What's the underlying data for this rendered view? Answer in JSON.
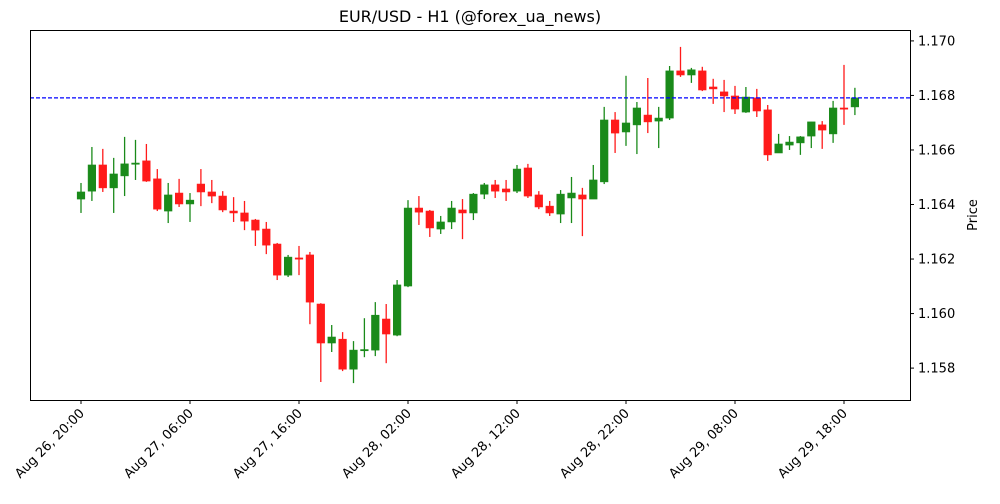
{
  "chart_data": {
    "type": "candlestick",
    "title": "EUR/USD - H1 (@forex_ua_news)",
    "xlabel": "",
    "ylabel": "Price",
    "ylim": [
      1.15683,
      1.1704
    ],
    "y_ticks": [
      1.158,
      1.16,
      1.162,
      1.164,
      1.166,
      1.168,
      1.17
    ],
    "y_tick_labels": [
      "1.158",
      "1.160",
      "1.162",
      "1.164",
      "1.166",
      "1.168",
      "1.170"
    ],
    "x_ticks": [
      {
        "index": 0,
        "label": "Aug 26, 20:00"
      },
      {
        "index": 10,
        "label": "Aug 27, 06:00"
      },
      {
        "index": 20,
        "label": "Aug 27, 16:00"
      },
      {
        "index": 30,
        "label": "Aug 28, 02:00"
      },
      {
        "index": 40,
        "label": "Aug 28, 12:00"
      },
      {
        "index": 50,
        "label": "Aug 28, 22:00"
      },
      {
        "index": 60,
        "label": "Aug 29, 08:00"
      },
      {
        "index": 70,
        "label": "Aug 29, 18:00"
      }
    ],
    "grid": false,
    "hline": {
      "value": 1.16791,
      "color": "#0000ff",
      "style": "dashed"
    },
    "colors": {
      "up": "#1a8a1a",
      "down": "#ff1a1a"
    },
    "ohlc": [
      [
        1.1642,
        1.16479,
        1.16369,
        1.16446
      ],
      [
        1.16449,
        1.16611,
        1.16413,
        1.16545
      ],
      [
        1.16545,
        1.16604,
        1.16446,
        1.16461
      ],
      [
        1.16461,
        1.16571,
        1.16369,
        1.16512
      ],
      [
        1.16505,
        1.16648,
        1.16431,
        1.16549
      ],
      [
        1.16549,
        1.16637,
        1.1649,
        1.16552
      ],
      [
        1.1656,
        1.16622,
        1.16483,
        1.16486
      ],
      [
        1.16494,
        1.1653,
        1.16376,
        1.16383
      ],
      [
        1.16376,
        1.16479,
        1.16332,
        1.16435
      ],
      [
        1.16442,
        1.16494,
        1.16391,
        1.16402
      ],
      [
        1.16402,
        1.16442,
        1.16336,
        1.16416
      ],
      [
        1.16475,
        1.1653,
        1.16394,
        1.16446
      ],
      [
        1.16446,
        1.1649,
        1.16405,
        1.16431
      ],
      [
        1.16431,
        1.16449,
        1.16372,
        1.1638
      ],
      [
        1.16376,
        1.16427,
        1.16336,
        1.16369
      ],
      [
        1.16369,
        1.16413,
        1.16306,
        1.16339
      ],
      [
        1.16343,
        1.16347,
        1.16248,
        1.16306
      ],
      [
        1.1631,
        1.16336,
        1.16218,
        1.16251
      ],
      [
        1.16255,
        1.16259,
        1.16123,
        1.16141
      ],
      [
        1.16141,
        1.16215,
        1.16134,
        1.16207
      ],
      [
        1.16204,
        1.16248,
        1.16141,
        1.16203
      ],
      [
        1.16215,
        1.16226,
        1.15961,
        1.16042
      ],
      [
        1.16035,
        1.16038,
        1.15749,
        1.15892
      ],
      [
        1.15892,
        1.15958,
        1.15859,
        1.15914
      ],
      [
        1.15906,
        1.15932,
        1.15789,
        1.15796
      ],
      [
        1.15796,
        1.15899,
        1.15745,
        1.15866
      ],
      [
        1.15866,
        1.15983,
        1.1584,
        1.15868
      ],
      [
        1.15866,
        1.16042,
        1.15844,
        1.15994
      ],
      [
        1.1598,
        1.16035,
        1.15818,
        1.15925
      ],
      [
        1.15921,
        1.16123,
        1.15917,
        1.16105
      ],
      [
        1.16101,
        1.16416,
        1.16097,
        1.16387
      ],
      [
        1.16387,
        1.16431,
        1.16325,
        1.16372
      ],
      [
        1.16376,
        1.1638,
        1.16281,
        1.16314
      ],
      [
        1.1631,
        1.16358,
        1.16292,
        1.16336
      ],
      [
        1.16336,
        1.16413,
        1.1631,
        1.16387
      ],
      [
        1.1638,
        1.1642,
        1.16273,
        1.16369
      ],
      [
        1.16369,
        1.16442,
        1.16343,
        1.16438
      ],
      [
        1.16438,
        1.16479,
        1.1642,
        1.16472
      ],
      [
        1.16472,
        1.1649,
        1.16424,
        1.16449
      ],
      [
        1.16457,
        1.1649,
        1.16413,
        1.16446
      ],
      [
        1.16449,
        1.16545,
        1.16442,
        1.1653
      ],
      [
        1.16534,
        1.16549,
        1.16424,
        1.16431
      ],
      [
        1.16435,
        1.16449,
        1.16383,
        1.16391
      ],
      [
        1.16394,
        1.16413,
        1.16358,
        1.16369
      ],
      [
        1.16365,
        1.16453,
        1.16332,
        1.16438
      ],
      [
        1.16424,
        1.16501,
        1.16332,
        1.16442
      ],
      [
        1.16435,
        1.16461,
        1.16284,
        1.1642
      ],
      [
        1.1642,
        1.16545,
        1.1642,
        1.1649
      ],
      [
        1.16483,
        1.16758,
        1.16475,
        1.1671
      ],
      [
        1.1671,
        1.16739,
        1.16589,
        1.16662
      ],
      [
        1.16666,
        1.16872,
        1.16615,
        1.16699
      ],
      [
        1.16692,
        1.16776,
        1.16585,
        1.16754
      ],
      [
        1.16728,
        1.16864,
        1.16662,
        1.16703
      ],
      [
        1.16706,
        1.16758,
        1.16607,
        1.16717
      ],
      [
        1.16717,
        1.16908,
        1.1671,
        1.1689
      ],
      [
        1.1689,
        1.16978,
        1.16868,
        1.16875
      ],
      [
        1.16875,
        1.16901,
        1.16846,
        1.16894
      ],
      [
        1.1689,
        1.16905,
        1.16816,
        1.1682
      ],
      [
        1.16831,
        1.16861,
        1.16769,
        1.16824
      ],
      [
        1.16813,
        1.16857,
        1.16739,
        1.16798
      ],
      [
        1.16798,
        1.16835,
        1.16732,
        1.1675
      ],
      [
        1.16739,
        1.16831,
        1.16736,
        1.16794
      ],
      [
        1.16791,
        1.16824,
        1.16721,
        1.16743
      ],
      [
        1.16747,
        1.16765,
        1.1656,
        1.16582
      ],
      [
        1.16589,
        1.16659,
        1.16589,
        1.16622
      ],
      [
        1.16618,
        1.16651,
        1.166,
        1.16629
      ],
      [
        1.16626,
        1.16651,
        1.16582,
        1.16648
      ],
      [
        1.16651,
        1.16703,
        1.16607,
        1.16703
      ],
      [
        1.16692,
        1.16706,
        1.16604,
        1.16673
      ],
      [
        1.16659,
        1.1678,
        1.16626,
        1.16754
      ],
      [
        1.16754,
        1.16912,
        1.16692,
        1.16753
      ],
      [
        1.16758,
        1.16828,
        1.16728,
        1.16791
      ]
    ]
  }
}
